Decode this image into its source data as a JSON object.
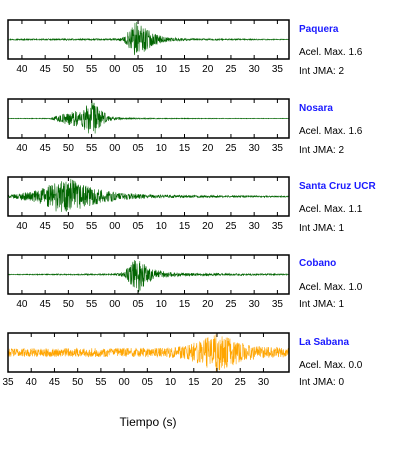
{
  "figure": {
    "xlabel": "Tiempo (s)",
    "acel_label": "Acel. Max.",
    "jma_label": "Int JMA:"
  },
  "chart_data": [
    {
      "type": "line",
      "station": "Paquera",
      "acel_max": "1.6",
      "int_jma": "2",
      "color": "#006400",
      "tick_labels": [
        "40",
        "45",
        "50",
        "55",
        "00",
        "05",
        "10",
        "15",
        "20",
        "25",
        "30",
        "35"
      ],
      "xlim": [
        37,
        97.5
      ],
      "first_tick": 40,
      "envelope": [
        {
          "t": 37,
          "a": 0.03
        },
        {
          "t": 60,
          "a": 0.05
        },
        {
          "t": 62,
          "a": 0.12
        },
        {
          "t": 63,
          "a": 0.5
        },
        {
          "t": 64.5,
          "a": 1.0
        },
        {
          "t": 66,
          "a": 0.75
        },
        {
          "t": 68,
          "a": 0.35
        },
        {
          "t": 71,
          "a": 0.12
        },
        {
          "t": 76,
          "a": 0.05
        },
        {
          "t": 97.5,
          "a": 0.02
        }
      ]
    },
    {
      "type": "line",
      "station": "Nosara",
      "acel_max": "1.6",
      "int_jma": "2",
      "color": "#006400",
      "tick_labels": [
        "40",
        "45",
        "50",
        "55",
        "00",
        "05",
        "10",
        "15",
        "20",
        "25",
        "30",
        "35"
      ],
      "xlim": [
        37,
        97.5
      ],
      "first_tick": 40,
      "envelope": [
        {
          "t": 37,
          "a": 0.01
        },
        {
          "t": 46,
          "a": 0.02
        },
        {
          "t": 48,
          "a": 0.2
        },
        {
          "t": 51,
          "a": 0.4
        },
        {
          "t": 53,
          "a": 0.55
        },
        {
          "t": 55,
          "a": 1.0
        },
        {
          "t": 57,
          "a": 0.45
        },
        {
          "t": 59,
          "a": 0.12
        },
        {
          "t": 62,
          "a": 0.04
        },
        {
          "t": 70,
          "a": 0.02
        },
        {
          "t": 97.5,
          "a": 0.01
        }
      ]
    },
    {
      "type": "line",
      "station": "Santa Cruz UCR",
      "acel_max": "1.1",
      "int_jma": "1",
      "color": "#006400",
      "tick_labels": [
        "40",
        "45",
        "50",
        "55",
        "00",
        "05",
        "10",
        "15",
        "20",
        "25",
        "30",
        "35"
      ],
      "xlim": [
        37,
        97.5
      ],
      "first_tick": 40,
      "envelope": [
        {
          "t": 37,
          "a": 0.05
        },
        {
          "t": 39,
          "a": 0.15
        },
        {
          "t": 42,
          "a": 0.25
        },
        {
          "t": 45,
          "a": 0.55
        },
        {
          "t": 48,
          "a": 0.85
        },
        {
          "t": 50,
          "a": 1.0
        },
        {
          "t": 52,
          "a": 0.75
        },
        {
          "t": 55,
          "a": 0.5
        },
        {
          "t": 58,
          "a": 0.3
        },
        {
          "t": 62,
          "a": 0.18
        },
        {
          "t": 68,
          "a": 0.1
        },
        {
          "t": 78,
          "a": 0.06
        },
        {
          "t": 97.5,
          "a": 0.03
        }
      ]
    },
    {
      "type": "line",
      "station": "Cobano",
      "acel_max": "1.0",
      "int_jma": "1",
      "color": "#006400",
      "tick_labels": [
        "40",
        "45",
        "50",
        "55",
        "00",
        "05",
        "10",
        "15",
        "20",
        "25",
        "30",
        "35"
      ],
      "xlim": [
        37,
        97.5
      ],
      "first_tick": 40,
      "envelope": [
        {
          "t": 37,
          "a": 0.02
        },
        {
          "t": 60,
          "a": 0.04
        },
        {
          "t": 62,
          "a": 0.15
        },
        {
          "t": 63.5,
          "a": 0.55
        },
        {
          "t": 65,
          "a": 1.0
        },
        {
          "t": 66.5,
          "a": 0.6
        },
        {
          "t": 68,
          "a": 0.3
        },
        {
          "t": 71,
          "a": 0.15
        },
        {
          "t": 76,
          "a": 0.08
        },
        {
          "t": 86,
          "a": 0.05
        },
        {
          "t": 97.5,
          "a": 0.03
        }
      ]
    },
    {
      "type": "line",
      "station": "La Sabana",
      "acel_max": "0.0",
      "int_jma": "0",
      "color": "#ffa500",
      "tick_labels": [
        "35",
        "40",
        "45",
        "50",
        "55",
        "00",
        "05",
        "10",
        "15",
        "20",
        "25",
        "30"
      ],
      "xlim": [
        35,
        95.5
      ],
      "first_tick": 35,
      "envelope": [
        {
          "t": 35,
          "a": 0.22
        },
        {
          "t": 60,
          "a": 0.24
        },
        {
          "t": 70,
          "a": 0.26
        },
        {
          "t": 74,
          "a": 0.4
        },
        {
          "t": 77,
          "a": 0.75
        },
        {
          "t": 80,
          "a": 1.0
        },
        {
          "t": 83,
          "a": 0.75
        },
        {
          "t": 86,
          "a": 0.45
        },
        {
          "t": 90,
          "a": 0.3
        },
        {
          "t": 95.5,
          "a": 0.25
        }
      ]
    }
  ]
}
